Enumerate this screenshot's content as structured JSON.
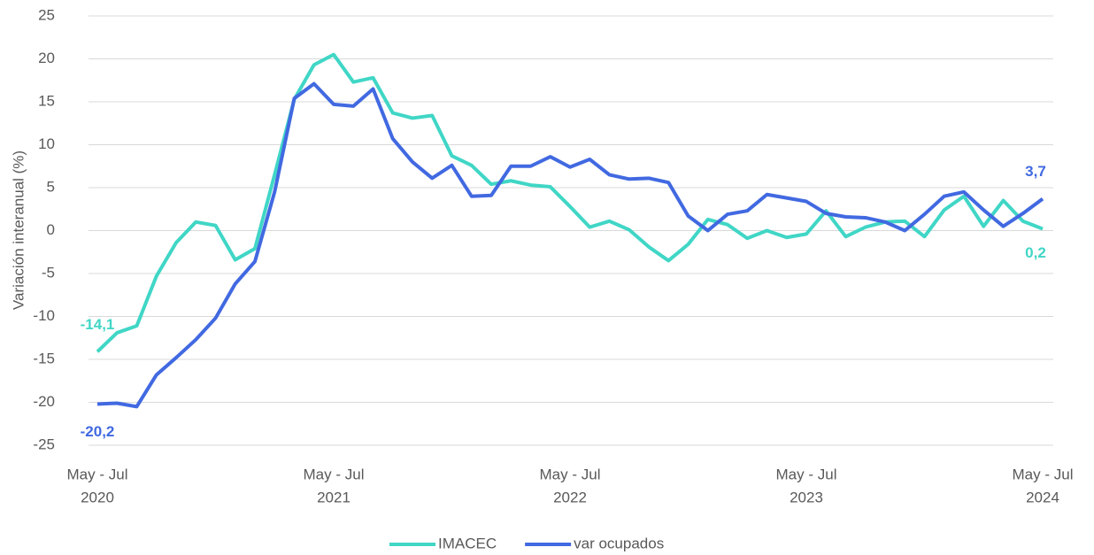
{
  "chart_data": {
    "type": "line",
    "y_label": "Variación interanual (%)",
    "categories": [
      [
        "May - Jul",
        "2020"
      ],
      null,
      null,
      null,
      null,
      null,
      null,
      null,
      null,
      null,
      null,
      null,
      [
        "May - Jul",
        "2021"
      ],
      null,
      null,
      null,
      null,
      null,
      null,
      null,
      null,
      null,
      null,
      null,
      [
        "May - Jul",
        "2022"
      ],
      null,
      null,
      null,
      null,
      null,
      null,
      null,
      null,
      null,
      null,
      null,
      [
        "May - Jul",
        "2023"
      ],
      null,
      null,
      null,
      null,
      null,
      null,
      null,
      null,
      null,
      null,
      null,
      [
        "May - Jul",
        "2024"
      ]
    ],
    "series": [
      {
        "name": "IMACEC",
        "color": "#40d6c6",
        "values": [
          -14.1,
          -11.9,
          -11.1,
          -5.3,
          -1.4,
          1.0,
          0.6,
          -3.4,
          -2.1,
          6.5,
          15.3,
          19.3,
          20.5,
          17.3,
          17.8,
          13.7,
          13.1,
          13.4,
          8.7,
          7.6,
          5.4,
          5.8,
          5.3,
          5.1,
          2.8,
          0.4,
          1.1,
          0.1,
          -1.9,
          -3.5,
          -1.6,
          1.3,
          0.7,
          -0.9,
          0.0,
          -0.8,
          -0.4,
          2.3,
          -0.7,
          0.4,
          1.0,
          1.1,
          -0.7,
          2.4,
          4.0,
          0.5,
          3.5,
          1.1,
          0.2
        ],
        "value_labels": [
          "-14,1",
          null,
          null,
          null,
          null,
          null,
          null,
          null,
          null,
          null,
          null,
          null,
          null,
          null,
          null,
          null,
          null,
          null,
          null,
          null,
          null,
          null,
          null,
          null,
          null,
          null,
          null,
          null,
          null,
          null,
          null,
          null,
          null,
          null,
          null,
          null,
          null,
          null,
          null,
          null,
          null,
          null,
          null,
          null,
          null,
          null,
          null,
          null,
          "0,2"
        ]
      },
      {
        "name": "var ocupados",
        "color": "#4169e1",
        "values": [
          -20.2,
          -20.1,
          -20.5,
          -16.8,
          -14.8,
          -12.7,
          -10.2,
          -6.2,
          -3.6,
          4.5,
          15.4,
          17.1,
          14.7,
          14.5,
          16.5,
          10.7,
          8.0,
          6.1,
          7.6,
          4.0,
          4.1,
          7.5,
          7.5,
          8.6,
          7.4,
          8.3,
          6.5,
          6.0,
          6.1,
          5.6,
          1.7,
          0.0,
          1.9,
          2.3,
          4.2,
          3.8,
          3.4,
          2.0,
          1.6,
          1.5,
          1.0,
          0.0,
          1.9,
          4.0,
          4.5,
          2.4,
          0.5,
          2.0,
          3.7
        ],
        "value_labels": [
          "-20,2",
          null,
          null,
          null,
          null,
          null,
          null,
          null,
          null,
          null,
          null,
          null,
          null,
          null,
          null,
          null,
          null,
          null,
          null,
          null,
          null,
          null,
          null,
          null,
          null,
          null,
          null,
          null,
          null,
          null,
          null,
          null,
          null,
          null,
          null,
          null,
          null,
          null,
          null,
          null,
          null,
          null,
          null,
          null,
          null,
          null,
          null,
          null,
          "3,7"
        ]
      }
    ],
    "ylim": [
      -25,
      25
    ],
    "yticks": [
      -25,
      -20,
      -15,
      -10,
      -5,
      0,
      5,
      10,
      15,
      20,
      25
    ],
    "grid": true,
    "legend": "bottom"
  }
}
